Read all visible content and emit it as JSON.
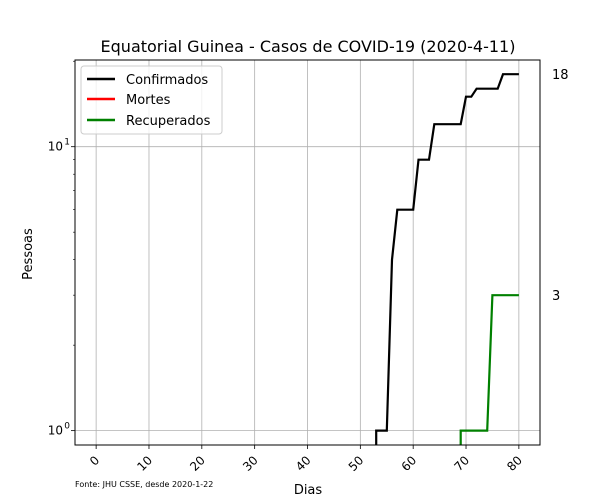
{
  "chart_data": {
    "type": "line",
    "title": "Equatorial Guinea - Casos de COVID-19 (2020-4-11)",
    "xlabel": "Dias",
    "ylabel": "Pessoas",
    "y_scale": "log",
    "xlim": [
      -4,
      84
    ],
    "ylim": [
      0.89,
      20.2
    ],
    "x_ticks": [
      "0",
      "10",
      "20",
      "30",
      "40",
      "50",
      "60",
      "70",
      "80"
    ],
    "y_ticks": [
      {
        "value": 1,
        "label": "10",
        "exp": "0"
      },
      {
        "value": 10,
        "label": "10",
        "exp": "1"
      }
    ],
    "x_tick_rotation": 45,
    "grid": true,
    "legend_position": "top-left",
    "source_note": "Fonte: JHU CSSE, desde 2020-1-22",
    "series": [
      {
        "name": "Confirmados",
        "color": "#000000",
        "x": [
          53,
          53,
          55,
          56,
          57,
          60,
          61,
          63,
          64,
          69,
          70,
          71,
          72,
          76,
          77,
          80
        ],
        "y": [
          0.5,
          1,
          1,
          4,
          6,
          6,
          9,
          9,
          12,
          12,
          15,
          15,
          16,
          16,
          18,
          18
        ],
        "end_label": "18"
      },
      {
        "name": "Mortes",
        "color": "#ff0000",
        "x": [],
        "y": [],
        "end_label": ""
      },
      {
        "name": "Recuperados",
        "color": "#008000",
        "x": [
          69,
          69,
          74,
          75,
          80
        ],
        "y": [
          0.5,
          1,
          1,
          3,
          3
        ],
        "end_label": "3"
      }
    ]
  }
}
